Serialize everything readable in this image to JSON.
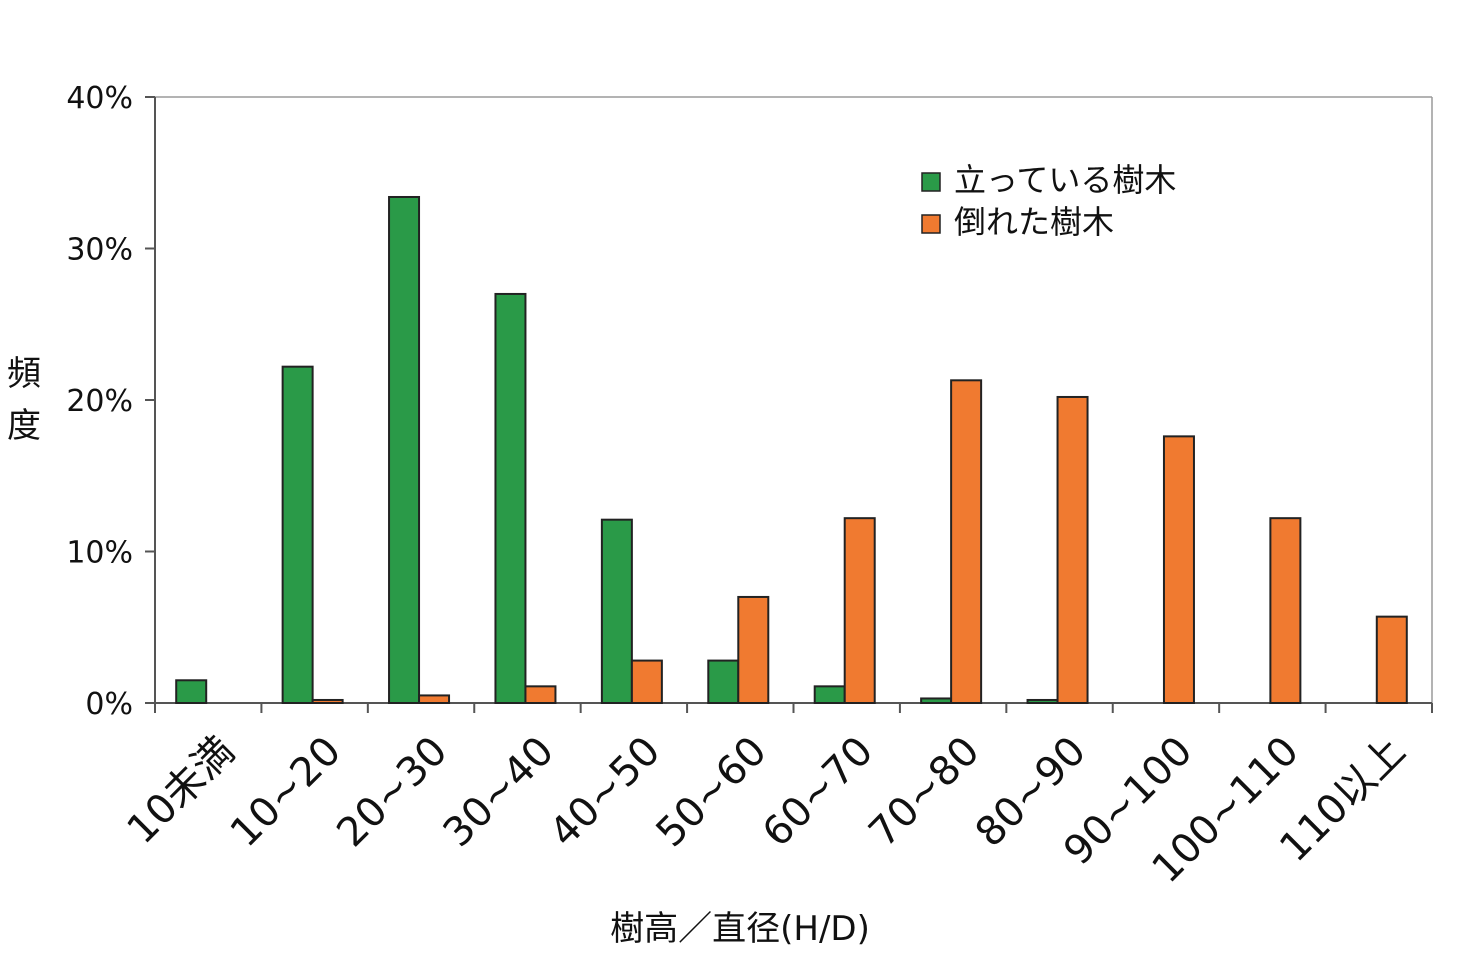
{
  "chart_data": {
    "type": "bar",
    "title": "",
    "xlabel": "樹高／直径(H/D)",
    "ylabel": "頻度",
    "categories": [
      "10未満",
      "10~20",
      "20~30",
      "30~40",
      "40~50",
      "50~60",
      "60~70",
      "70~80",
      "80~90",
      "90~100",
      "100~110",
      "110以上"
    ],
    "series": [
      {
        "name": "立っている樹木",
        "color": "#2a9a48",
        "values": [
          1.5,
          22.2,
          33.4,
          27.0,
          12.1,
          2.8,
          1.1,
          0.3,
          0.2,
          0,
          0,
          0
        ]
      },
      {
        "name": "倒れた樹木",
        "color": "#f07a30",
        "values": [
          0,
          0.2,
          0.5,
          1.1,
          2.8,
          7.0,
          12.2,
          21.3,
          20.2,
          17.6,
          12.2,
          5.7
        ]
      }
    ],
    "yticks": [
      "0%",
      "10%",
      "20%",
      "30%",
      "40%"
    ],
    "ytick_values": [
      0,
      10,
      20,
      30,
      40
    ],
    "ylim": [
      0,
      40
    ],
    "grid": false,
    "legend_position": "top-right"
  }
}
